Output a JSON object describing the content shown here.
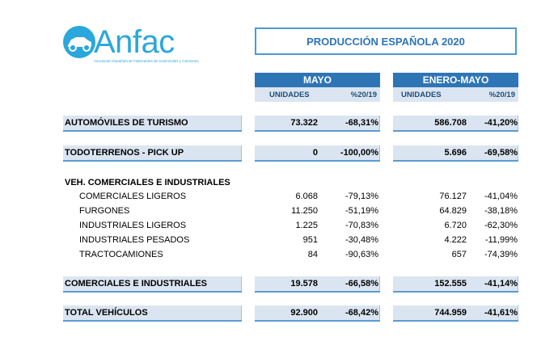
{
  "logo": {
    "name": "Anfac",
    "subtitle": "Asociación Española de Fabricantes de Automóviles y Camiones"
  },
  "title": "PRODUCCIÓN ESPAÑOLA 2020",
  "columns": {
    "mayo": "MAYO",
    "enero_mayo": "ENERO-MAYO",
    "unidades": "UNIDADES",
    "pct": "%20/19"
  },
  "rows": {
    "turismo": {
      "label": "AUTOMÓVILES DE TURISMO",
      "mayo_u": "73.322",
      "mayo_p": "-68,31%",
      "em_u": "586.708",
      "em_p": "-41,20%"
    },
    "todoterrenos": {
      "label": "TODOTERRENOS - PICK UP",
      "mayo_u": "0",
      "mayo_p": "-100,00%",
      "em_u": "5.696",
      "em_p": "-69,58%"
    },
    "veh_header": {
      "label": "VEH. COMERCIALES E INDUSTRIALES"
    },
    "sub": [
      {
        "label": "COMERCIALES LIGEROS",
        "mayo_u": "6.068",
        "mayo_p": "-79,13%",
        "em_u": "76.127",
        "em_p": "-41,04%"
      },
      {
        "label": "FURGONES",
        "mayo_u": "11.250",
        "mayo_p": "-51,19%",
        "em_u": "64.829",
        "em_p": "-38,18%"
      },
      {
        "label": "INDUSTRIALES LIGEROS",
        "mayo_u": "1.225",
        "mayo_p": "-70,83%",
        "em_u": "6.720",
        "em_p": "-62,30%"
      },
      {
        "label": "INDUSTRIALES PESADOS",
        "mayo_u": "951",
        "mayo_p": "-30,48%",
        "em_u": "4.222",
        "em_p": "-11,99%"
      },
      {
        "label": "TRACTOCAMIONES",
        "mayo_u": "84",
        "mayo_p": "-90,63%",
        "em_u": "657",
        "em_p": "-74,39%"
      }
    ],
    "comerciales": {
      "label": "COMERCIALES E INDUSTRIALES",
      "mayo_u": "19.578",
      "mayo_p": "-66,58%",
      "em_u": "152.555",
      "em_p": "-41,14%"
    },
    "total": {
      "label": "TOTAL VEHÍCULOS",
      "mayo_u": "92.900",
      "mayo_p": "-68,42%",
      "em_u": "744.959",
      "em_p": "-41,61%"
    }
  },
  "colors": {
    "accent": "#2e75b6",
    "light": "#dbe5f1",
    "logo": "#2aa7dc"
  }
}
